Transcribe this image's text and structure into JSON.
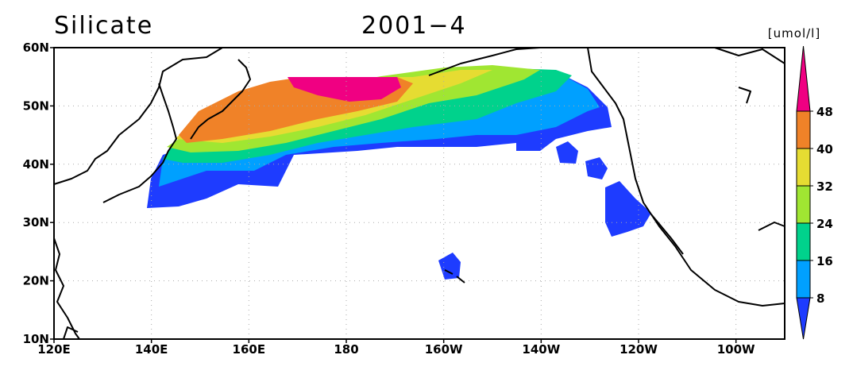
{
  "title": "Silicate",
  "period": "2001−4",
  "units": "[umol/l]",
  "lon_labels": [
    "120E",
    "140E",
    "160E",
    "180",
    "160W",
    "140W",
    "120W",
    "100W"
  ],
  "lat_labels": [
    "60N",
    "50N",
    "40N",
    "30N",
    "20N",
    "10N"
  ],
  "colorbar": {
    "levels": [
      48,
      40,
      32,
      24,
      16,
      8
    ],
    "colors": [
      "#f00082",
      "#f08228",
      "#e6dc32",
      "#a0e632",
      "#00d28c",
      "#00a0ff",
      "#1e3cff"
    ]
  }
}
